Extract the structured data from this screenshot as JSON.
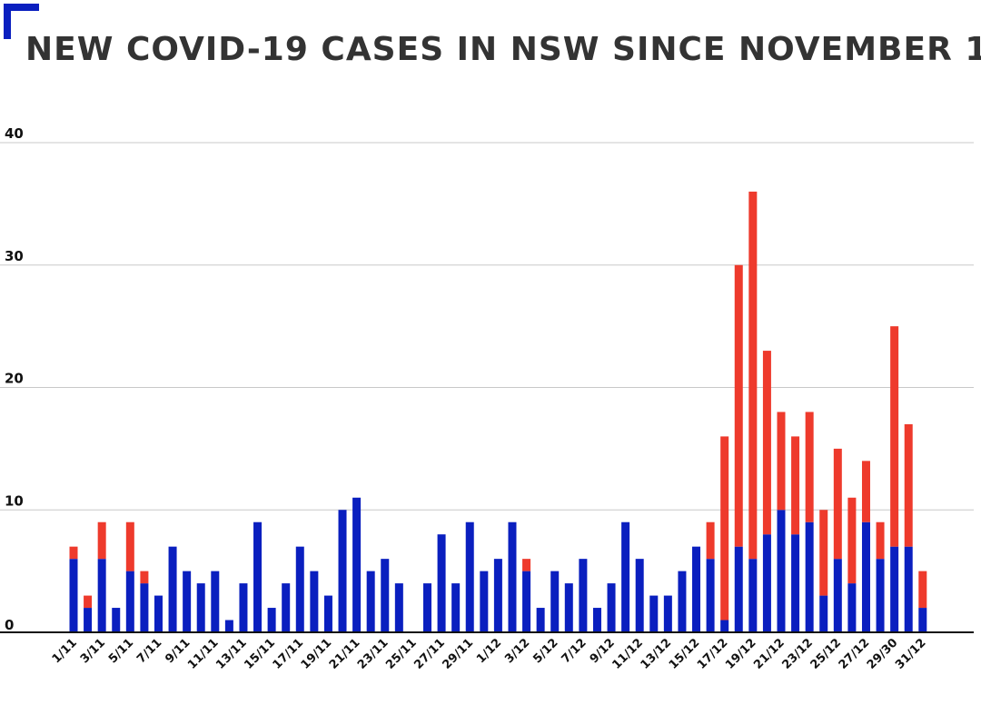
{
  "title": "NEW COVID-19 CASES IN NSW SINCE NOVEMBER 1",
  "colors": {
    "accent": "#0a1fbf",
    "series_a": "#0a1fbf",
    "series_b": "#ee3a2c",
    "gridline": "#c8c8c8",
    "axis": "#111111"
  },
  "chart_data": {
    "type": "bar",
    "stacked": true,
    "title": "NEW COVID-19 CASES IN NSW SINCE NOVEMBER 1",
    "ylim": [
      0,
      40
    ],
    "yticks": [
      0,
      10,
      20,
      30,
      40
    ],
    "grid": true,
    "legend": "none",
    "categories": [
      "1/11",
      "2/11",
      "3/11",
      "4/11",
      "5/11",
      "6/11",
      "7/11",
      "8/11",
      "9/11",
      "10/11",
      "11/11",
      "12/11",
      "13/11",
      "14/11",
      "15/11",
      "16/11",
      "17/11",
      "18/11",
      "19/11",
      "20/11",
      "21/11",
      "22/11",
      "23/11",
      "24/11",
      "25/11",
      "26/11",
      "27/11",
      "28/11",
      "29/11",
      "30/11",
      "1/12",
      "2/12",
      "3/12",
      "4/12",
      "5/12",
      "6/12",
      "7/12",
      "8/12",
      "9/12",
      "10/12",
      "11/12",
      "12/12",
      "13/12",
      "14/12",
      "15/12",
      "16/12",
      "17/12",
      "18/12",
      "19/12",
      "20/12",
      "21/12",
      "22/12",
      "23/12",
      "24/12",
      "25/12",
      "26/12",
      "27/12",
      "28/12",
      "29/30",
      "30/12",
      "31/12"
    ],
    "xtick_labels": [
      "1/11",
      "3/11",
      "5/11",
      "7/11",
      "9/11",
      "11/11",
      "13/11",
      "15/11",
      "17/11",
      "19/11",
      "21/11",
      "23/11",
      "25/11",
      "27/11",
      "29/11",
      "1/12",
      "3/12",
      "5/12",
      "7/12",
      "9/12",
      "11/12",
      "13/12",
      "15/12",
      "17/12",
      "19/12",
      "21/12",
      "23/12",
      "25/12",
      "27/12",
      "29/30",
      "31/12"
    ],
    "series": [
      {
        "color": "#0a1fbf",
        "values": [
          6,
          2,
          6,
          2,
          5,
          4,
          3,
          7,
          5,
          4,
          5,
          1,
          4,
          9,
          2,
          4,
          7,
          5,
          3,
          10,
          11,
          5,
          6,
          4,
          0,
          4,
          8,
          4,
          9,
          5,
          6,
          9,
          5,
          2,
          5,
          4,
          6,
          2,
          4,
          9,
          6,
          3,
          3,
          5,
          7,
          6,
          1,
          7,
          6,
          8,
          10,
          8,
          9,
          3,
          6,
          4,
          9,
          6,
          7,
          7,
          2
        ]
      },
      {
        "color": "#ee3a2c",
        "values": [
          1,
          1,
          3,
          0,
          4,
          1,
          0,
          0,
          0,
          0,
          0,
          0,
          0,
          0,
          0,
          0,
          0,
          0,
          0,
          0,
          0,
          0,
          0,
          0,
          0,
          0,
          0,
          0,
          0,
          0,
          0,
          0,
          1,
          0,
          0,
          0,
          0,
          0,
          0,
          0,
          0,
          0,
          0,
          0,
          0,
          3,
          15,
          23,
          30,
          15,
          8,
          8,
          9,
          7,
          9,
          7,
          5,
          3,
          18,
          10,
          3
        ]
      }
    ]
  }
}
